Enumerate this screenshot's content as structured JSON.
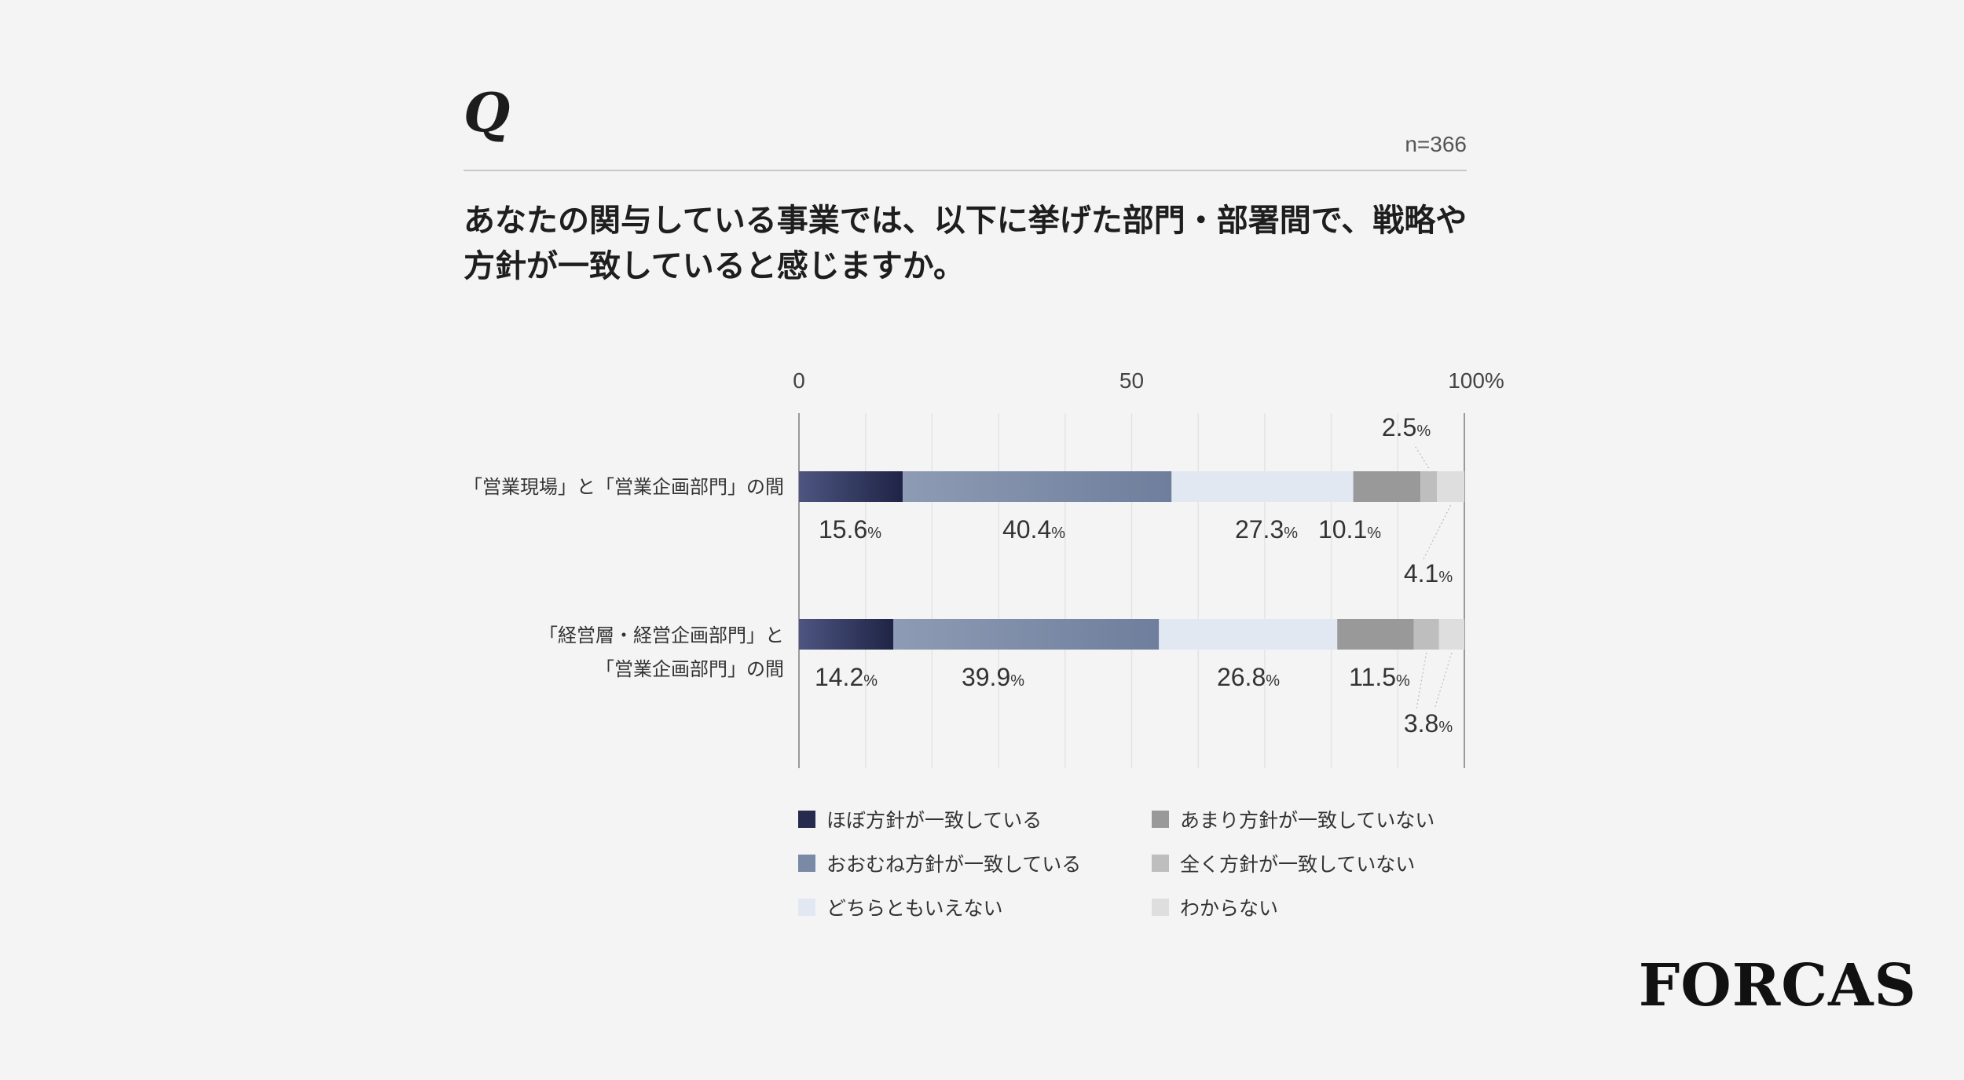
{
  "header": {
    "q_mark": "Q",
    "n": "n=366"
  },
  "question": {
    "line1": "あなたの関与している事業では、以下に挙げた部門・部署間で、戦略や",
    "line2": "方針が一致していると感じますか。"
  },
  "chart_data": {
    "type": "bar",
    "orientation": "horizontal",
    "stacked": true,
    "percent_stacked": true,
    "x_ticks": [
      "0",
      "50",
      "100%"
    ],
    "xlim": [
      0,
      100
    ],
    "grid": true,
    "unit_suffix": "%",
    "categories": [
      [
        "「営業現場」と「営業企画部門」の間"
      ],
      [
        "「経営層・経営企画部門」と",
        "「営業企画部門」の間"
      ]
    ],
    "series": [
      {
        "name": "ほぼ方針が一致している",
        "color": "#252a4e",
        "values": [
          15.6,
          14.2
        ]
      },
      {
        "name": "おおむね方針が一致している",
        "color": "#7a8aa6",
        "values": [
          40.4,
          39.9
        ]
      },
      {
        "name": "どちらともいえない",
        "color": "#e1e8f2",
        "values": [
          27.3,
          26.8
        ]
      },
      {
        "name": "あまり方針が一致していない",
        "color": "#999999",
        "values": [
          10.1,
          11.5
        ]
      },
      {
        "name": "全く方針が一致していない",
        "color": "#bebebe",
        "values": [
          2.5,
          3.8
        ]
      },
      {
        "name": "わからない",
        "color": "#dedede",
        "values": [
          4.1,
          3.8
        ]
      }
    ],
    "data_labels": [
      [
        "15.6",
        "40.4",
        "27.3",
        "10.1",
        "2.5",
        "4.1"
      ],
      [
        "14.2",
        "39.9",
        "26.8",
        "11.5",
        "",
        "3.8"
      ]
    ],
    "legend_placement": "bottom"
  },
  "brand": {
    "logo": "FORCAS"
  }
}
